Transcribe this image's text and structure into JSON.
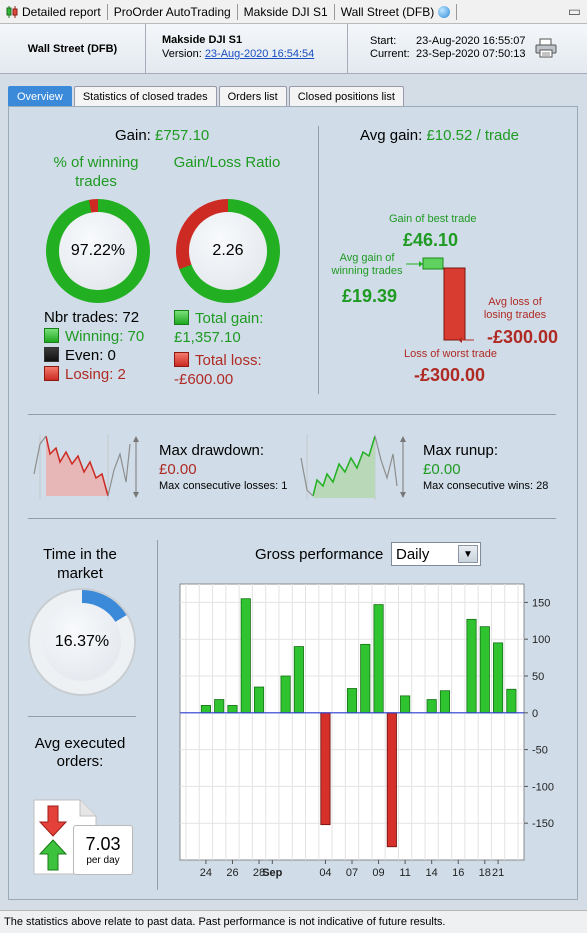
{
  "titlebar": {
    "items": [
      "Detailed report",
      "ProOrder AutoTrading",
      "Makside DJI S1",
      "Wall Street (DFB)"
    ]
  },
  "header": {
    "instrument": "Wall Street (DFB)",
    "system": "Makside DJI S1",
    "version_label": "Version:",
    "version_link": "23-Aug-2020 16:54:54",
    "start_label": "Start:",
    "start_value": "23-Aug-2020 16:55:07",
    "current_label": "Current:",
    "current_value": "23-Sep-2020 07:50:13"
  },
  "tabs": [
    "Overview",
    "Statistics of closed trades",
    "Orders list",
    "Closed positions list"
  ],
  "overview": {
    "gain_label": "Gain:",
    "gain_value": "£757.10",
    "pct_winning_title": "% of winning trades",
    "pct_winning_value": "97.22%",
    "pct_winning_fraction": 0.9722,
    "gain_loss_title": "Gain/Loss Ratio",
    "gain_loss_value": "2.26",
    "gain_loss_fraction": 0.693,
    "nbr_trades": "Nbr trades: 72",
    "winning": "Winning: 70",
    "even": "Even: 0",
    "losing": "Losing: 2",
    "total_gain_label": "Total gain:",
    "total_gain_value": "£1,357.10",
    "total_loss_label": "Total loss:",
    "total_loss_value": "-£600.00",
    "avg_gain_label": "Avg gain:",
    "avg_gain_value": "£10.52 / trade",
    "best_trade_label": "Gain of best trade",
    "best_trade_value": "£46.10",
    "avg_winning_label": "Avg gain of winning trades",
    "avg_winning_value": "£19.39",
    "avg_losing_label": "Avg loss of losing trades",
    "avg_losing_value": "-£300.00",
    "worst_trade_label": "Loss of worst trade",
    "worst_trade_value": "-£300.00",
    "max_drawdown_label": "Max drawdown:",
    "max_drawdown_value": "£0.00",
    "max_consec_losses": "Max consecutive losses: 1",
    "max_runup_label": "Max runup:",
    "max_runup_value": "£0.00",
    "max_consec_wins": "Max consecutive wins: 28",
    "time_in_market_title": "Time in the market",
    "time_in_market_value": "16.37%",
    "time_in_market_fraction": 0.1637,
    "avg_orders_title": "Avg executed orders:",
    "avg_orders_value": "7.03",
    "avg_orders_unit": "per day",
    "gross_perf_title": "Gross performance",
    "gross_perf_period": "Daily"
  },
  "colors": {
    "win": "#22b022",
    "loss": "#cc2a22",
    "accent": "#3b8ad9"
  },
  "chart_data": {
    "type": "bar",
    "title": "Gross performance",
    "x_tick_labels": [
      "24",
      "26",
      "28",
      "Sep",
      "04",
      "07",
      "09",
      "11",
      "14",
      "16",
      "18",
      "21"
    ],
    "categories": [
      "23-Aug",
      "24-Aug",
      "25-Aug",
      "26-Aug",
      "27-Aug",
      "28-Aug",
      "31-Aug",
      "01-Sep",
      "02-Sep",
      "03-Sep",
      "04-Sep",
      "06-Sep",
      "07-Sep",
      "08-Sep",
      "09-Sep",
      "10-Sep",
      "11-Sep",
      "13-Sep",
      "14-Sep",
      "15-Sep",
      "16-Sep",
      "17-Sep",
      "18-Sep",
      "21-Sep",
      "22-Sep"
    ],
    "values": [
      0,
      10,
      18,
      10,
      155,
      35,
      0,
      50,
      90,
      0,
      -152,
      0,
      33,
      93,
      147,
      -182,
      23,
      0,
      18,
      30,
      0,
      127,
      117,
      95,
      32
    ],
    "y_ticks": [
      150,
      100,
      50,
      0,
      -50,
      -100,
      -150
    ],
    "ylim": [
      -200,
      175
    ],
    "grid": true
  }
}
